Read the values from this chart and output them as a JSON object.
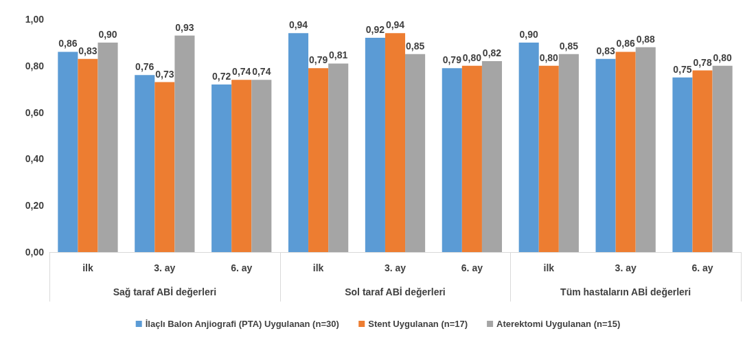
{
  "chart_data": {
    "type": "bar",
    "categories": [
      "ilk",
      "3. ay",
      "6. ay",
      "ilk",
      "3. ay",
      "6. ay",
      "ilk",
      "3. ay",
      "6. ay"
    ],
    "annotations": [
      "Sağ taraf ABİ değerleri",
      "Sol taraf ABİ değerleri",
      "Tüm hastaların ABİ değerleri"
    ],
    "series": [
      {
        "name": "İlaçlı Balon Anjiografi (PTA) Uygulanan (n=30)",
        "color": "#5b9bd5",
        "values": [
          0.86,
          0.76,
          0.72,
          0.94,
          0.92,
          0.79,
          0.9,
          0.83,
          0.75
        ],
        "value_labels": [
          "0,86",
          "0,76",
          "0,72",
          "0,94",
          "0,92",
          "0,79",
          "0,90",
          "0,83",
          "0,75"
        ]
      },
      {
        "name": "Stent Uygulanan (n=17)",
        "color": "#ed7d31",
        "values": [
          0.83,
          0.73,
          0.74,
          0.79,
          0.94,
          0.8,
          0.8,
          0.86,
          0.78
        ],
        "value_labels": [
          "0,83",
          "0,73",
          "0,74",
          "0,79",
          "0,94",
          "0,80",
          "0,80",
          "0,86",
          "0,78"
        ]
      },
      {
        "name": "Aterektomi Uygulanan (n=15)",
        "color": "#a5a5a5",
        "values": [
          0.9,
          0.93,
          0.74,
          0.81,
          0.85,
          0.82,
          0.85,
          0.88,
          0.8
        ],
        "value_labels": [
          "0,90",
          "0,93",
          "0,74",
          "0,81",
          "0,85",
          "0,82",
          "0,85",
          "0,88",
          "0,80"
        ]
      }
    ],
    "ylim": [
      0,
      1
    ],
    "yticks": [
      {
        "value": 0,
        "label": "0,00"
      },
      {
        "value": 0.2,
        "label": "0,20"
      },
      {
        "value": 0.4,
        "label": "0,40"
      },
      {
        "value": 0.6,
        "label": "0,60"
      },
      {
        "value": 0.8,
        "label": "0,80"
      },
      {
        "value": 1,
        "label": "1,00"
      }
    ],
    "grid": false,
    "legend": "bottom"
  }
}
